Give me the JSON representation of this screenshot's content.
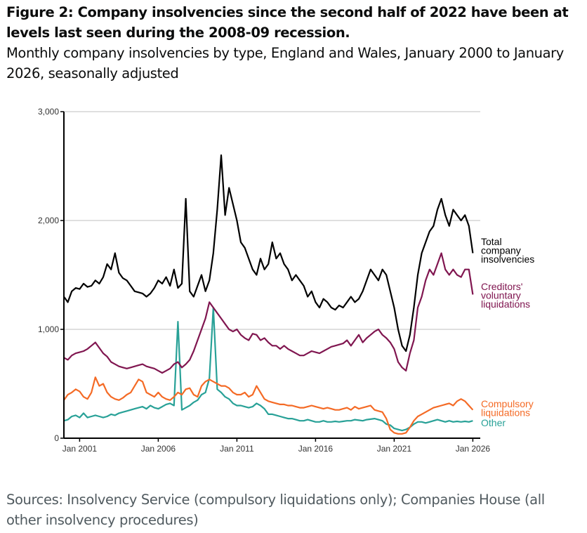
{
  "title": "Figure 2: Company insolvencies since the second half of 2022 have been at levels last seen during the 2008-09 recession.",
  "subtitle": "Monthly company insolvencies by type, England and Wales, January 2000 to January 2026, seasonally adjusted",
  "source": "Sources: Insolvency Service (compulsory liquidations only); Companies House (all other insolvency procedures)",
  "chart_data": {
    "type": "line",
    "title": "Monthly company insolvencies by type, England and Wales, January 2000 to January 2026, seasonally adjusted",
    "xlabel": "",
    "ylabel": "",
    "xlim": [
      2000.0,
      2026.1
    ],
    "ylim": [
      0,
      3000
    ],
    "grid": "horizontal",
    "legend": "direct labels at right end of lines",
    "yticks": [
      0,
      1000,
      2000,
      3000
    ],
    "ytick_labels": [
      "0",
      "1,000",
      "2,000",
      "3,000"
    ],
    "xticks": [
      2001,
      2006,
      2011,
      2016,
      2021,
      2026
    ],
    "xtick_labels": [
      "Jan 2001",
      "Jan 2006",
      "Jan 2011",
      "Jan 2016",
      "Jan 2021",
      "Jan 2026"
    ],
    "x_step_note": "quarterly samples from Jan 2000 to Jan 2026 (values estimated from the figure)",
    "x_start": 2000.0,
    "x_step": 0.25,
    "series": [
      {
        "name": "Total company insolvencies",
        "label_lines": [
          "Total",
          "company",
          "insolvencies"
        ],
        "color": "#000000",
        "values": [
          1300,
          1250,
          1350,
          1380,
          1370,
          1420,
          1390,
          1400,
          1450,
          1420,
          1480,
          1600,
          1550,
          1700,
          1520,
          1470,
          1450,
          1400,
          1350,
          1340,
          1330,
          1300,
          1330,
          1380,
          1450,
          1420,
          1480,
          1400,
          1550,
          1380,
          1420,
          2200,
          1350,
          1300,
          1400,
          1500,
          1350,
          1450,
          1700,
          2100,
          2600,
          2050,
          2300,
          2150,
          2000,
          1800,
          1750,
          1650,
          1550,
          1500,
          1650,
          1550,
          1600,
          1800,
          1650,
          1700,
          1600,
          1550,
          1450,
          1500,
          1450,
          1400,
          1300,
          1350,
          1250,
          1200,
          1280,
          1250,
          1200,
          1180,
          1220,
          1200,
          1250,
          1300,
          1250,
          1280,
          1350,
          1450,
          1550,
          1500,
          1450,
          1550,
          1500,
          1350,
          1200,
          1000,
          850,
          800,
          950,
          1200,
          1500,
          1700,
          1800,
          1900,
          1950,
          2100,
          2200,
          2050,
          1950,
          2100,
          2050,
          2000,
          2050,
          1950,
          1700
        ]
      },
      {
        "name": "Creditors' voluntary liquidations",
        "label_lines": [
          "Creditors'",
          "voluntary",
          "liquidations"
        ],
        "color": "#801650",
        "values": [
          740,
          720,
          760,
          780,
          790,
          800,
          820,
          850,
          880,
          830,
          780,
          750,
          700,
          680,
          660,
          650,
          640,
          650,
          660,
          670,
          680,
          660,
          650,
          640,
          620,
          600,
          620,
          640,
          680,
          700,
          650,
          680,
          720,
          800,
          900,
          1000,
          1100,
          1250,
          1200,
          1150,
          1100,
          1050,
          1000,
          980,
          1000,
          950,
          920,
          900,
          960,
          950,
          900,
          920,
          880,
          850,
          850,
          820,
          850,
          820,
          800,
          780,
          760,
          760,
          780,
          800,
          790,
          780,
          800,
          820,
          840,
          850,
          860,
          870,
          900,
          850,
          900,
          950,
          880,
          920,
          950,
          980,
          1000,
          950,
          920,
          880,
          820,
          700,
          650,
          620,
          780,
          900,
          1200,
          1300,
          1450,
          1550,
          1500,
          1600,
          1700,
          1550,
          1500,
          1550,
          1500,
          1480,
          1550,
          1550,
          1320
        ]
      },
      {
        "name": "Compulsory liquidations",
        "label_lines": [
          "Compulsory",
          "liquidations"
        ],
        "color": "#f46a25",
        "values": [
          350,
          400,
          420,
          450,
          430,
          380,
          360,
          420,
          560,
          480,
          500,
          420,
          380,
          360,
          350,
          370,
          400,
          420,
          480,
          540,
          520,
          420,
          400,
          380,
          420,
          380,
          360,
          350,
          380,
          420,
          400,
          450,
          460,
          400,
          380,
          480,
          520,
          540,
          520,
          500,
          480,
          480,
          460,
          420,
          400,
          400,
          420,
          380,
          400,
          480,
          420,
          360,
          340,
          330,
          320,
          310,
          310,
          300,
          300,
          290,
          280,
          280,
          290,
          300,
          290,
          280,
          270,
          280,
          270,
          260,
          260,
          270,
          280,
          260,
          290,
          270,
          280,
          290,
          300,
          260,
          250,
          240,
          180,
          80,
          50,
          40,
          40,
          50,
          100,
          160,
          200,
          220,
          240,
          260,
          280,
          290,
          300,
          310,
          320,
          300,
          340,
          360,
          340,
          300,
          260
        ]
      },
      {
        "name": "Other",
        "label_lines": [
          "Other"
        ],
        "color": "#28a197",
        "values": [
          160,
          170,
          200,
          210,
          190,
          230,
          190,
          200,
          210,
          200,
          190,
          200,
          220,
          210,
          230,
          240,
          250,
          260,
          270,
          280,
          290,
          270,
          300,
          280,
          270,
          290,
          310,
          320,
          300,
          1070,
          260,
          280,
          300,
          330,
          350,
          400,
          420,
          550,
          1200,
          450,
          420,
          380,
          360,
          320,
          300,
          300,
          290,
          280,
          290,
          320,
          300,
          270,
          220,
          220,
          210,
          200,
          190,
          180,
          180,
          170,
          160,
          160,
          170,
          160,
          150,
          150,
          160,
          150,
          150,
          155,
          150,
          155,
          160,
          160,
          170,
          165,
          160,
          170,
          175,
          180,
          170,
          160,
          130,
          120,
          90,
          80,
          70,
          80,
          100,
          130,
          150,
          150,
          140,
          150,
          160,
          170,
          160,
          150,
          160,
          150,
          155,
          150,
          155,
          150,
          160
        ]
      }
    ]
  }
}
